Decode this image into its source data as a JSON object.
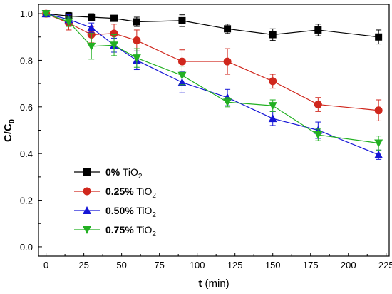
{
  "chart_data": {
    "type": "line",
    "xlabel": "t (min)",
    "xlabel_parts": {
      "bold": "t",
      "rest": " (min)"
    },
    "ylabel": "C/C0",
    "ylabel_parts": {
      "main": "C/C",
      "sub": "0"
    },
    "xlim": [
      -5,
      227
    ],
    "ylim": [
      -0.04,
      1.04
    ],
    "xticks": [
      0,
      25,
      50,
      75,
      100,
      125,
      150,
      175,
      200,
      225
    ],
    "yticks": [
      0.0,
      0.2,
      0.4,
      0.6,
      0.8,
      1.0
    ],
    "ytick_labels": [
      "0.0",
      "0.2",
      "0.4",
      "0.6",
      "0.8",
      "1.0"
    ],
    "grid": false,
    "legend_position": "lower-left",
    "x": [
      0,
      15,
      30,
      45,
      60,
      90,
      120,
      150,
      180,
      220
    ],
    "series": [
      {
        "name": "0% TiO2",
        "label_bold": "0%",
        "label_rest": " TiO",
        "label_sub": "2",
        "color": "#000000",
        "marker": "square",
        "values": [
          1.0,
          0.99,
          0.985,
          0.98,
          0.965,
          0.97,
          0.935,
          0.91,
          0.93,
          0.9
        ],
        "errors": [
          0.01,
          0.015,
          0.015,
          0.01,
          0.02,
          0.025,
          0.02,
          0.025,
          0.025,
          0.03
        ]
      },
      {
        "name": "0.25% TiO2",
        "label_bold": "0.25%",
        "label_rest": " TiO",
        "label_sub": "2",
        "color": "#d0271d",
        "marker": "circle",
        "values": [
          1.0,
          0.96,
          0.91,
          0.915,
          0.885,
          0.795,
          0.795,
          0.71,
          0.61,
          0.585
        ],
        "errors": [
          0.01,
          0.03,
          0.035,
          0.04,
          0.045,
          0.05,
          0.055,
          0.03,
          0.03,
          0.045
        ]
      },
      {
        "name": "0.50% TiO2",
        "label_bold": "0.50%",
        "label_rest": " TiO",
        "label_sub": "2",
        "color": "#1515d6",
        "marker": "triangle-up",
        "values": [
          1.0,
          0.975,
          0.94,
          0.865,
          0.8,
          0.705,
          0.64,
          0.55,
          0.5,
          0.395
        ],
        "errors": [
          0.01,
          0.02,
          0.02,
          0.03,
          0.04,
          0.045,
          0.035,
          0.03,
          0.035,
          0.02
        ]
      },
      {
        "name": "0.75% TiO2",
        "label_bold": "0.75%",
        "label_rest": " TiO",
        "label_sub": "2",
        "color": "#22b022",
        "marker": "triangle-down",
        "values": [
          1.0,
          0.965,
          0.86,
          0.865,
          0.81,
          0.735,
          0.62,
          0.605,
          0.48,
          0.445
        ],
        "errors": [
          0.01,
          0.02,
          0.055,
          0.045,
          0.04,
          0.04,
          0.02,
          0.025,
          0.025,
          0.03
        ]
      }
    ]
  }
}
